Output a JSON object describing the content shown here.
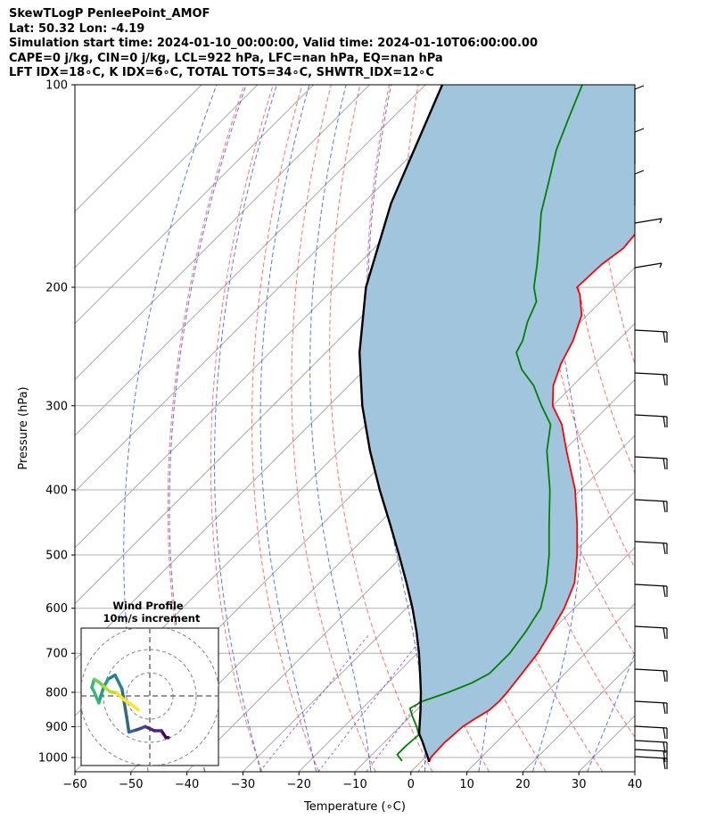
{
  "header": {
    "lines": [
      "SkewTLogP PenleePoint_AMOF",
      "Lat: 50.32   Lon: -4.19",
      "Simulation start time: 2024-01-10_00:00:00, Valid time: 2024-01-10T06:00:00.00",
      "CAPE=0 j/kg, CIN=0 j/kg, LCL=922 hPa, LFC=nan hPa, EQ=nan hPa",
      "LFT IDX=18∘C, K IDX=6∘C, TOTAL TOTS=34∘C, SHWTR_IDX=12∘C"
    ]
  },
  "colors": {
    "temperature": "#ff0000",
    "dewpoint": "#008000",
    "parcel": "#000000",
    "cape_fill": "#a2c5de",
    "dry_adiabat": "#ff4040",
    "moist_adiabat": "#3050ff",
    "isotherm": "#a8a8a8",
    "mixing_ratio": "#9a32cd"
  },
  "chart_data": {
    "type": "line",
    "title": "",
    "xlabel": "Temperature (∘C)",
    "ylabel": "Pressure (hPa)",
    "xlim": [
      -60,
      40
    ],
    "ylim": [
      1050,
      100
    ],
    "yscale": "log",
    "x_ticks": [
      -60,
      -50,
      -40,
      -30,
      -20,
      -10,
      0,
      10,
      20,
      30,
      40
    ],
    "x_tick_labels": [
      "−60",
      "−50",
      "−40",
      "−30",
      "−20",
      "−10",
      "0",
      "10",
      "20",
      "30",
      "40"
    ],
    "y_ticks": [
      1000,
      900,
      800,
      700,
      600,
      500,
      400,
      300,
      200,
      100
    ],
    "y_tick_labels": [
      "1000",
      "900",
      "800",
      "700",
      "600",
      "500",
      "400",
      "300",
      "200",
      "100"
    ],
    "grid": true,
    "series": [
      {
        "role": "temperature",
        "pressure": [
          1015,
          1000,
          950,
          925,
          900,
          875,
          850,
          825,
          800,
          750,
          700,
          650,
          600,
          550,
          500,
          450,
          400,
          350,
          320,
          300,
          280,
          260,
          240,
          220,
          205,
          200,
          185,
          175,
          165,
          150,
          130,
          115,
          100
        ],
        "temperature": [
          1.5,
          1.0,
          0.8,
          1.0,
          1.2,
          2.0,
          3.0,
          3.2,
          3.0,
          2.3,
          1.5,
          0.0,
          -1.8,
          -4.5,
          -9.0,
          -14.5,
          -21.0,
          -29.5,
          -35.0,
          -40.0,
          -43.5,
          -46.0,
          -48.0,
          -51.0,
          -55.0,
          -56.8,
          -56.5,
          -55.5,
          -56.0,
          -56.0,
          -56.5,
          -58.0,
          -61.0
        ]
      },
      {
        "role": "dewpoint",
        "pressure": [
          1012,
          990,
          960,
          925,
          900,
          870,
          845,
          825,
          800,
          775,
          750,
          700,
          650,
          600,
          550,
          500,
          450,
          400,
          350,
          320,
          300,
          280,
          265,
          250,
          240,
          225,
          210,
          200,
          185,
          170,
          155,
          140,
          125,
          112,
          100
        ],
        "temperature": [
          -3.5,
          -5.5,
          -5.5,
          -5.2,
          -7.0,
          -9.5,
          -11.5,
          -10.5,
          -7.5,
          -5.0,
          -3.5,
          -3.5,
          -4.5,
          -6.0,
          -9.5,
          -14.0,
          -19.5,
          -25.5,
          -33.0,
          -37.0,
          -42.0,
          -47.0,
          -52.0,
          -56.0,
          -57.0,
          -59.5,
          -61.5,
          -64.5,
          -68.0,
          -72.0,
          -76.5,
          -80.5,
          -85.0,
          -88.5,
          -92.0
        ]
      },
      {
        "role": "parcel",
        "pressure": [
          1015,
          1000,
          975,
          950,
          922,
          900,
          850,
          800,
          750,
          700,
          650,
          600,
          550,
          500,
          450,
          400,
          350,
          300,
          250,
          200,
          150,
          100
        ],
        "temperature": [
          1.5,
          0.5,
          -1.3,
          -3.1,
          -5.3,
          -6.5,
          -9.3,
          -12.4,
          -15.9,
          -19.7,
          -24.0,
          -28.9,
          -34.5,
          -40.8,
          -47.9,
          -55.9,
          -64.6,
          -74.0,
          -84.0,
          -94.5,
          -105.0,
          -117.0
        ]
      }
    ],
    "annotations": [
      "CAPE=0 j/kg",
      "CIN=0 j/kg",
      "LCL=922 hPa"
    ],
    "inset": {
      "type": "hodograph",
      "title_line1": "Wind Profile",
      "title_line2": "10m/s increment",
      "ring_increment": 10,
      "rings": 3,
      "u": [
        8,
        7,
        5,
        2,
        -2,
        -5,
        -7,
        -9,
        -10,
        -12,
        -15,
        -18,
        -20,
        -22,
        -24,
        -25,
        -24,
        -22,
        -20,
        -17,
        -14,
        -11,
        -8,
        -5
      ],
      "v": [
        -3,
        -3,
        -2.5,
        -2.5,
        -2.2,
        -2.4,
        -2.5,
        -2.6,
        -1.5,
        0.5,
        1.5,
        1.2,
        0.6,
        -0.5,
        0.3,
        0.6,
        1.2,
        1.0,
        0.7,
        0.3,
        0.2,
        -0.3,
        -0.6,
        -1.0
      ]
    }
  }
}
